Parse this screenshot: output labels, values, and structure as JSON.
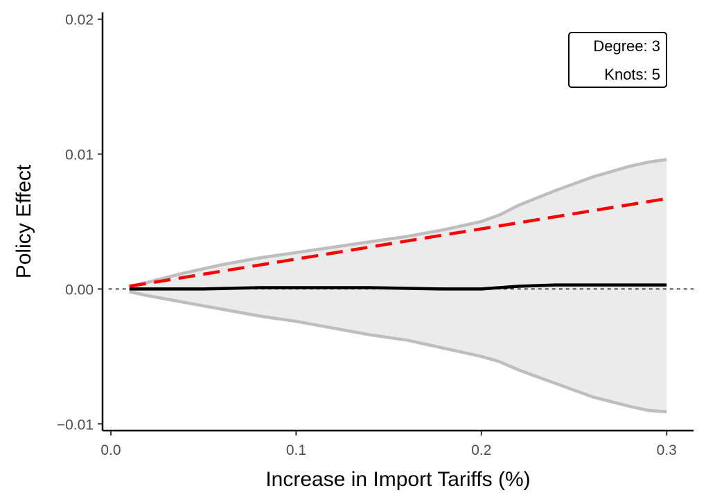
{
  "chart_data": {
    "type": "line",
    "title": "",
    "xlabel": "Increase in Import Tariffs (%)",
    "ylabel": "Policy Effect",
    "xlim": [
      -0.0045,
      0.3145
    ],
    "ylim": [
      -0.0105,
      0.0205
    ],
    "x_ticks": [
      0.0,
      0.1,
      0.2,
      0.3
    ],
    "x_tick_labels": [
      "0.0",
      "0.1",
      "0.2",
      "0.3"
    ],
    "y_ticks": [
      -0.01,
      0.0,
      0.01,
      0.02
    ],
    "y_tick_labels": [
      "−0.01",
      "0.00",
      "0.01",
      "0.02"
    ],
    "annotation": {
      "line1": "Degree: 3",
      "line2": "Knots: 5",
      "position": "top-right"
    },
    "reference_line": {
      "y": 0,
      "style": "dashed",
      "color": "#000000"
    },
    "ci_band": {
      "name": "confidence band",
      "x": [
        0.01,
        0.02,
        0.04,
        0.06,
        0.08,
        0.1,
        0.12,
        0.14,
        0.16,
        0.18,
        0.2,
        0.21,
        0.22,
        0.24,
        0.26,
        0.28,
        0.29,
        0.3
      ],
      "upper": [
        0.0002,
        0.0005,
        0.0012,
        0.0018,
        0.0023,
        0.0027,
        0.0031,
        0.0035,
        0.0039,
        0.0044,
        0.005,
        0.0055,
        0.0062,
        0.0073,
        0.0083,
        0.0091,
        0.0094,
        0.0096
      ],
      "lower": [
        -0.0002,
        -0.0005,
        -0.001,
        -0.0015,
        -0.002,
        -0.0024,
        -0.0029,
        -0.0034,
        -0.0038,
        -0.0044,
        -0.005,
        -0.0054,
        -0.006,
        -0.007,
        -0.008,
        -0.0087,
        -0.009,
        -0.0091
      ],
      "fill_color": "#ebebeb",
      "line_color": "#bebebe"
    },
    "series": [
      {
        "name": "estimate",
        "color": "#000000",
        "style": "solid",
        "x": [
          0.01,
          0.05,
          0.08,
          0.1,
          0.14,
          0.18,
          0.2,
          0.22,
          0.24,
          0.27,
          0.3
        ],
        "values": [
          0.0,
          0.0,
          0.0001,
          0.0001,
          0.0001,
          0.0,
          0.0,
          0.0002,
          0.0003,
          0.0003,
          0.0003
        ]
      },
      {
        "name": "true effect",
        "color": "#ff0000",
        "style": "dashed",
        "x": [
          0.01,
          0.3
        ],
        "values": [
          0.0002,
          0.0067
        ]
      }
    ]
  }
}
